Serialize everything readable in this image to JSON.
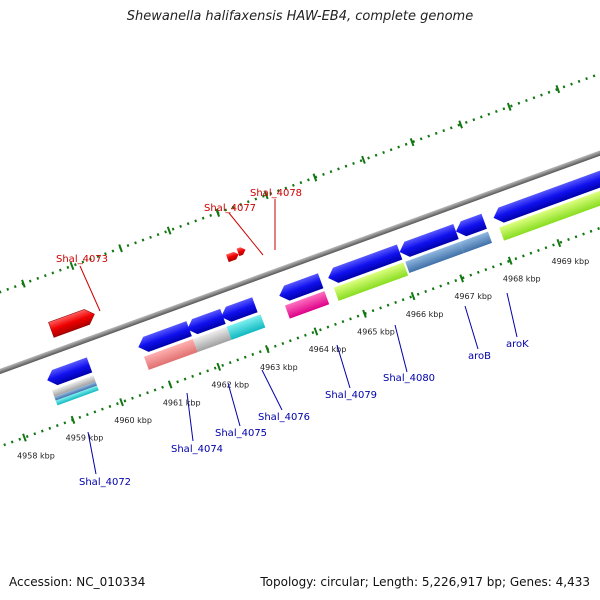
{
  "title": "Shewanella halifaxensis HAW-EB4, complete genome",
  "footer": {
    "accession": "Accession: NC_010334",
    "summary": "Topology: circular; Length: 5,226,917 bp; Genes: 4,433"
  },
  "colors": {
    "label_red": "#cc0000",
    "label_blue": "#0000aa",
    "backbone": "#888888",
    "tick": "#117711"
  },
  "ticks": [
    "4958 kbp",
    "4959 kbp",
    "4960 kbp",
    "4961 kbp",
    "4962 kbp",
    "4963 kbp",
    "4964 kbp",
    "4965 kbp",
    "4966 kbp",
    "4967 kbp",
    "4968 kbp",
    "4969 kbp"
  ],
  "gene_labels": {
    "above": [
      "Shal_4073",
      "Shal_4077",
      "Shal_4078"
    ],
    "below": [
      "Shal_4072",
      "Shal_4074",
      "Shal_4075",
      "Shal_4076",
      "Shal_4079",
      "Shal_4080",
      "aroB",
      "aroK"
    ]
  }
}
